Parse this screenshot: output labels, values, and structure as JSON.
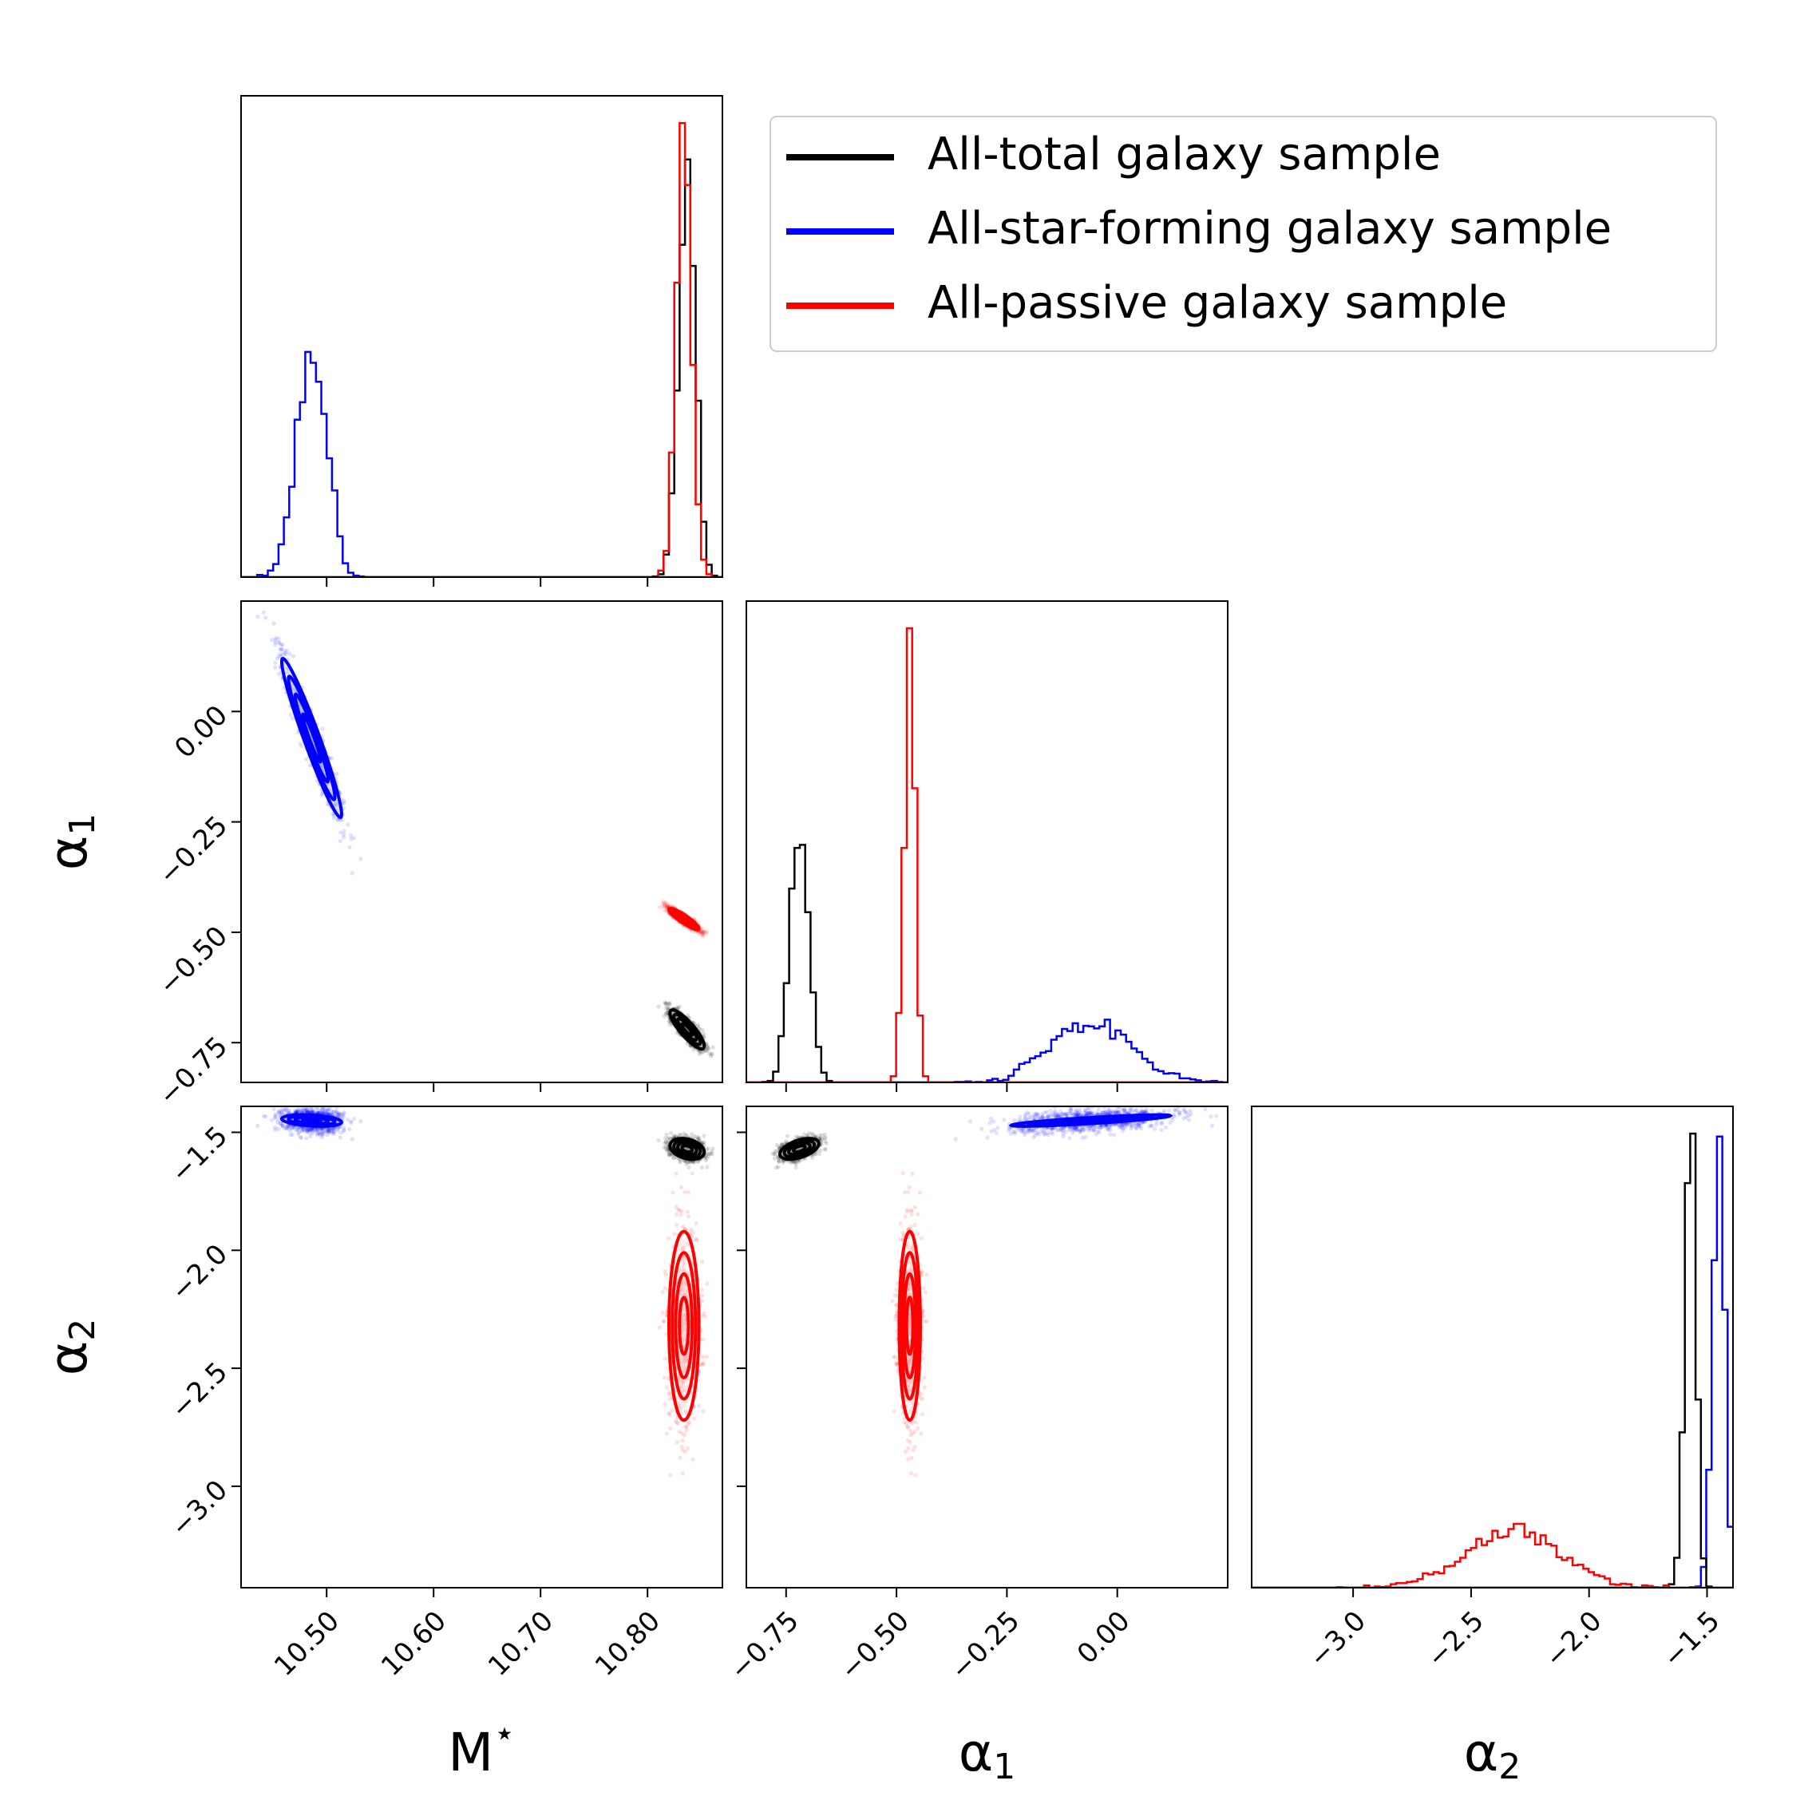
{
  "chart_data": {
    "type": "corner",
    "title": "",
    "parameters": [
      {
        "id": "Mstar",
        "label": "M",
        "sup": "⋆",
        "range": [
          10.42,
          10.87
        ],
        "ticks": [
          10.5,
          10.6,
          10.7,
          10.8
        ],
        "tick_labels": [
          "10.50",
          "10.60",
          "10.70",
          "10.80"
        ]
      },
      {
        "id": "alpha1",
        "label": "α",
        "sub": "1",
        "range": [
          -0.84,
          0.25
        ],
        "ticks": [
          -0.75,
          -0.5,
          -0.25,
          0.0
        ],
        "tick_labels": [
          "−0.75",
          "−0.50",
          "−0.25",
          "0.00"
        ]
      },
      {
        "id": "alpha2",
        "label": "α",
        "sub": "2",
        "range": [
          -3.43,
          -1.39
        ],
        "ticks": [
          -3.0,
          -2.5,
          -2.0,
          -1.5
        ],
        "tick_labels": [
          "−3.0",
          "−2.5",
          "−2.0",
          "−1.5"
        ]
      }
    ],
    "legend": {
      "position": "top-right",
      "entries": [
        {
          "label": "All-total galaxy sample",
          "color": "#000000"
        },
        {
          "label": "All-star-forming galaxy sample",
          "color": "#0000ff"
        },
        {
          "label": "All-passive galaxy sample",
          "color": "#ff0000"
        }
      ]
    },
    "series": [
      {
        "name": "All-total galaxy sample",
        "color": "#000000",
        "Mstar": {
          "mean": 10.837,
          "sd": 0.008
        },
        "alpha1": {
          "mean": -0.72,
          "sd": 0.022
        },
        "alpha2": {
          "mean": -1.57,
          "sd": 0.022
        },
        "corr": {
          "Mstar_alpha1": -0.85,
          "Mstar_alpha2": -0.3,
          "alpha1_alpha2": 0.5
        }
      },
      {
        "name": "All-star-forming galaxy sample",
        "color": "#0000ff",
        "Mstar": {
          "mean": 10.486,
          "sd": 0.014
        },
        "alpha1": {
          "mean": -0.06,
          "sd": 0.09
        },
        "alpha2": {
          "mean": -1.45,
          "sd": 0.012
        },
        "corr": {
          "Mstar_alpha1": -0.96,
          "Mstar_alpha2": -0.3,
          "alpha1_alpha2": 0.85
        }
      },
      {
        "name": "All-passive galaxy sample",
        "color": "#ff0000",
        "Mstar": {
          "mean": 10.834,
          "sd": 0.007
        },
        "alpha1": {
          "mean": -0.47,
          "sd": 0.012
        },
        "alpha2": {
          "mean": -2.32,
          "sd": 0.2
        },
        "corr": {
          "Mstar_alpha1": -0.9,
          "Mstar_alpha2": 0.0,
          "alpha1_alpha2": 0.0
        }
      }
    ]
  }
}
